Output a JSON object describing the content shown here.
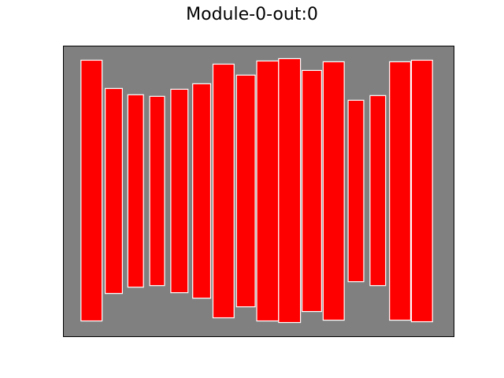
{
  "chart_data": {
    "type": "bar",
    "title": "Module-0-out:0",
    "xlabel": "",
    "ylabel": "",
    "grid": false,
    "axes_visible": false,
    "background_color": "#808080",
    "bar_color": "#ff0000",
    "bar_edge_color": "#ffffff",
    "xlim": [
      0,
      500
    ],
    "ylim": [
      -190,
      180
    ],
    "bars": [
      {
        "x_start": 22.5,
        "x_end": 49.5,
        "bottom": -170,
        "top": 162
      },
      {
        "x_start": 53.5,
        "x_end": 75.5,
        "bottom": -135,
        "top": 126
      },
      {
        "x_start": 82.5,
        "x_end": 102.5,
        "bottom": -127,
        "top": 118
      },
      {
        "x_start": 110.5,
        "x_end": 129.5,
        "bottom": -125,
        "top": 116
      },
      {
        "x_start": 137.5,
        "x_end": 159.5,
        "bottom": -134,
        "top": 125
      },
      {
        "x_start": 165.5,
        "x_end": 188.5,
        "bottom": -141,
        "top": 132
      },
      {
        "x_start": 191.5,
        "x_end": 218.5,
        "bottom": -166,
        "top": 157
      },
      {
        "x_start": 221.5,
        "x_end": 245.5,
        "bottom": -152,
        "top": 143
      },
      {
        "x_start": 247.5,
        "x_end": 275.5,
        "bottom": -170,
        "top": 161
      },
      {
        "x_start": 275.5,
        "x_end": 303.5,
        "bottom": -172,
        "top": 164
      },
      {
        "x_start": 305.5,
        "x_end": 330.5,
        "bottom": -158,
        "top": 149
      },
      {
        "x_start": 332.5,
        "x_end": 359.5,
        "bottom": -169,
        "top": 160
      },
      {
        "x_start": 364.5,
        "x_end": 384.5,
        "bottom": -120,
        "top": 111
      },
      {
        "x_start": 392.5,
        "x_end": 412.5,
        "bottom": -125,
        "top": 117
      },
      {
        "x_start": 417.5,
        "x_end": 444.5,
        "bottom": -169,
        "top": 160
      },
      {
        "x_start": 445.5,
        "x_end": 472.5,
        "bottom": -171,
        "top": 162
      }
    ]
  }
}
